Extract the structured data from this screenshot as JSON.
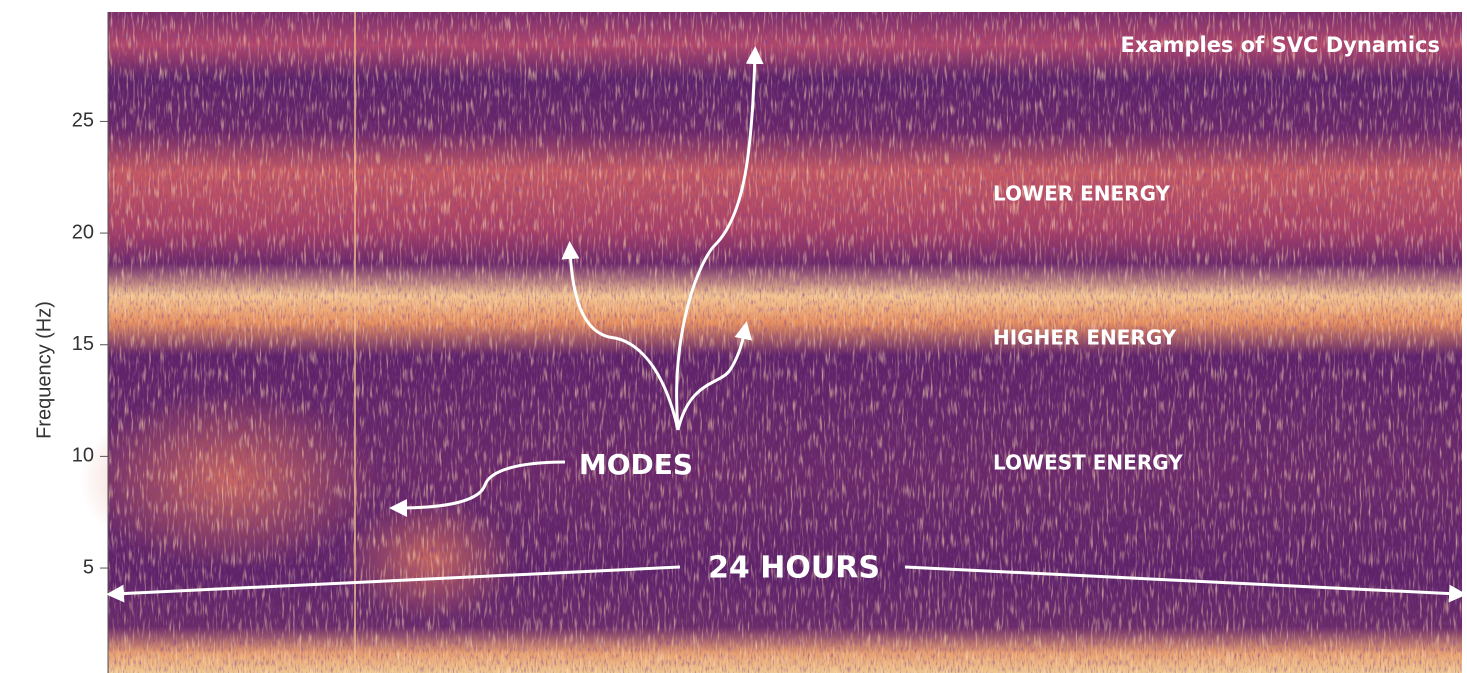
{
  "chart_data": {
    "type": "spectrogram",
    "title": "Examples of SVC Dynamics",
    "y_label": "Frequency (Hz)",
    "ylim": [
      0.3,
      29.9
    ],
    "yticks": [
      5,
      10,
      15,
      20,
      25
    ],
    "annotations": {
      "lower": "LOWER ENERGY",
      "higher": "HIGHER ENERGY",
      "lowest": "LOWEST ENERGY",
      "modes": "MODES",
      "duration": "24 HOURS"
    }
  }
}
